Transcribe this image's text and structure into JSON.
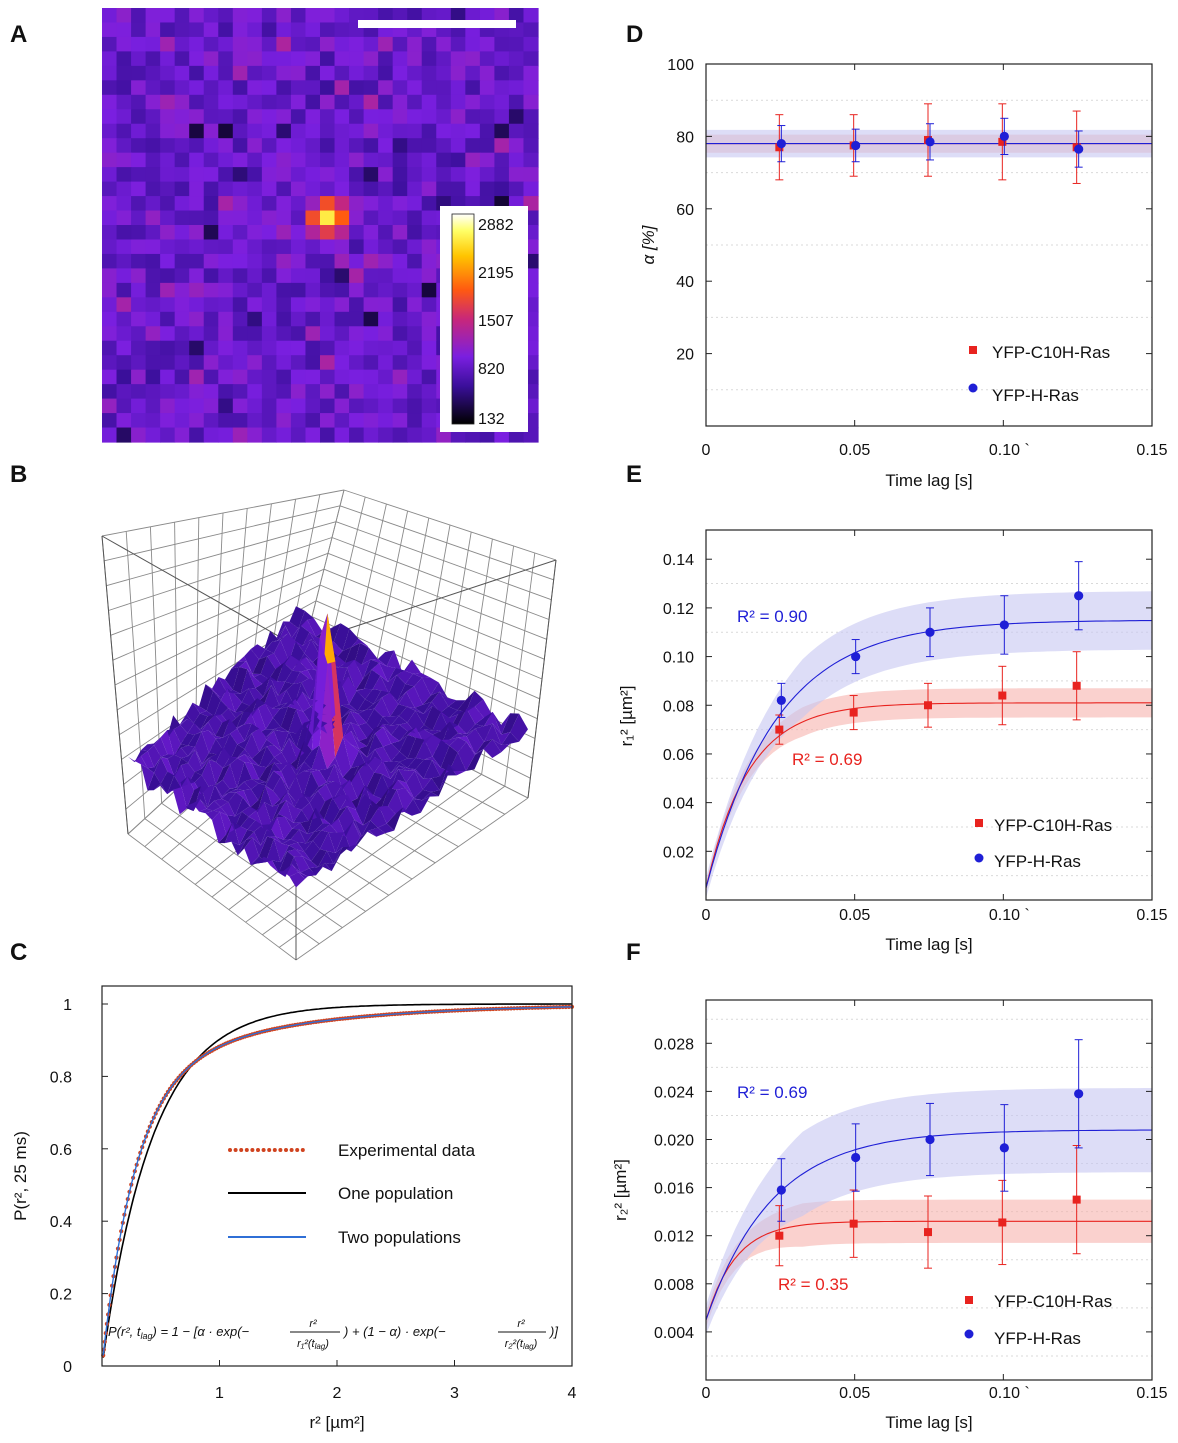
{
  "panel_letters": {
    "a": "A",
    "b": "B",
    "c": "C",
    "d": "D",
    "e": "E",
    "f": "F"
  },
  "colors": {
    "red": "#e8231f",
    "blue": "#1f1fd6",
    "red_band": "#f6b3ae",
    "blue_band": "#c6c6f2",
    "exp_dots": "#d0431f",
    "two_pop": "#2f6fd6",
    "one_pop": "#000000"
  },
  "chart_data": [
    {
      "id": "A",
      "type": "heatmap",
      "colorbar": {
        "ticks": [
          "2882",
          "2195",
          "1507",
          "820",
          "132"
        ],
        "min": 132,
        "max": 2882
      },
      "colormap": "fire"
    },
    {
      "id": "B",
      "type": "surface-3d",
      "colormap": "fire"
    },
    {
      "id": "C",
      "type": "line",
      "xlabel": "r² [µm²]",
      "ylabel": "P(r², 25 ms)",
      "xlim": [
        0,
        4
      ],
      "ylim": [
        0,
        1
      ],
      "xticks": [
        "1",
        "2",
        "3",
        "4"
      ],
      "yticks": [
        "0",
        "0.2",
        "0.4",
        "0.6",
        "0.8",
        "1"
      ],
      "legend": [
        "Experimental data",
        "One population",
        "Two populations"
      ],
      "formula": {
        "lhs": "P(r², t",
        "lhs_sub": "lag",
        "lhs_end": ") = 1 − [α · exp(−",
        "f1_num": "r²",
        "f1_den": "r₁²(t",
        "f1_den_sub": "lag",
        "f1_den_end": ")",
        "mid": ") + (1 − α) · exp(−",
        "f2_num": "r²",
        "f2_den": "r₂²(t",
        "f2_den_sub": "lag",
        "f2_den_end": ")",
        "end": ")]"
      },
      "one_population": {
        "alpha": 1.0,
        "r1": 0.43
      },
      "two_populations": {
        "alpha": 0.78,
        "r1": 0.28,
        "r2": 1.2
      }
    },
    {
      "id": "D",
      "type": "scatter",
      "xlabel": "Time lag [s]",
      "ylabel": "α [%]",
      "xlim": [
        0,
        0.15
      ],
      "ylim": [
        0,
        100
      ],
      "xticks": [
        "0",
        "0.05",
        "0.10 `",
        "0.15"
      ],
      "yticks": [
        "20",
        "40",
        "60",
        "80",
        "100"
      ],
      "fit": 78,
      "series": [
        {
          "name": "YFP-C10H-Ras",
          "x": [
            0.025,
            0.05,
            0.075,
            0.1,
            0.125
          ],
          "y": [
            77,
            77.5,
            79,
            78.5,
            77
          ],
          "err": [
            9,
            8.5,
            10,
            10.5,
            10
          ],
          "band": 2.5
        },
        {
          "name": "YFP-H-Ras",
          "x": [
            0.025,
            0.05,
            0.075,
            0.1,
            0.125
          ],
          "y": [
            78,
            77.5,
            78.5,
            80,
            76.5
          ],
          "err": [
            5,
            4.5,
            5,
            5,
            5
          ],
          "band": 3.8
        }
      ]
    },
    {
      "id": "E",
      "type": "scatter",
      "xlabel": "Time lag [s]",
      "ylabel": "r₁² [µm²]",
      "xlim": [
        0,
        0.15
      ],
      "ylim": [
        0,
        0.15
      ],
      "xticks": [
        "0",
        "0.05",
        "0.10 `",
        "0.15"
      ],
      "yticks": [
        "0.02",
        "0.04",
        "0.06",
        "0.08",
        "0.10",
        "0.12",
        "0.14"
      ],
      "series": [
        {
          "name": "YFP-C10H-Ras",
          "r2_label": "R² = 0.69",
          "x": [
            0.025,
            0.05,
            0.075,
            0.1,
            0.125
          ],
          "y": [
            0.07,
            0.077,
            0.08,
            0.084,
            0.088
          ],
          "err": [
            0.006,
            0.007,
            0.009,
            0.012,
            0.014
          ],
          "fit": {
            "y0": 0.005,
            "plateau": 0.081,
            "k": 70
          },
          "band": 0.006
        },
        {
          "name": "YFP-H-Ras",
          "r2_label": "R² = 0.90",
          "x": [
            0.025,
            0.05,
            0.075,
            0.1,
            0.125
          ],
          "y": [
            0.082,
            0.1,
            0.11,
            0.113,
            0.125
          ],
          "err": [
            0.007,
            0.007,
            0.01,
            0.012,
            0.014
          ],
          "fit": {
            "y0": 0.005,
            "plateau": 0.115,
            "k": 42
          },
          "band": 0.012
        }
      ]
    },
    {
      "id": "F",
      "type": "scatter",
      "xlabel": "Time lag [s]",
      "ylabel": "r₂² [µm²]",
      "xlim": [
        0,
        0.15
      ],
      "ylim": [
        0,
        0.03
      ],
      "xticks": [
        "0",
        "0.05",
        "0.10 `",
        "0.15"
      ],
      "yticks": [
        "0.004",
        "0.008",
        "0.012",
        "0.016",
        "0.020",
        "0.024",
        "0.028"
      ],
      "series": [
        {
          "name": "YFP-C10H-Ras",
          "r2_label": "R² = 0.35",
          "x": [
            0.025,
            0.05,
            0.075,
            0.1,
            0.125
          ],
          "y": [
            0.012,
            0.013,
            0.0123,
            0.0131,
            0.015
          ],
          "err": [
            0.0025,
            0.0028,
            0.003,
            0.0035,
            0.0045
          ],
          "fit": {
            "y0": 0.005,
            "plateau": 0.0132,
            "k": 100
          },
          "band": 0.0018
        },
        {
          "name": "YFP-H-Ras",
          "r2_label": "R² = 0.69",
          "x": [
            0.025,
            0.05,
            0.075,
            0.1,
            0.125
          ],
          "y": [
            0.0158,
            0.0185,
            0.02,
            0.0193,
            0.0238
          ],
          "err": [
            0.0026,
            0.0028,
            0.003,
            0.0036,
            0.0045
          ],
          "fit": {
            "y0": 0.005,
            "plateau": 0.0208,
            "k": 45
          },
          "band": 0.0035
        }
      ]
    }
  ]
}
